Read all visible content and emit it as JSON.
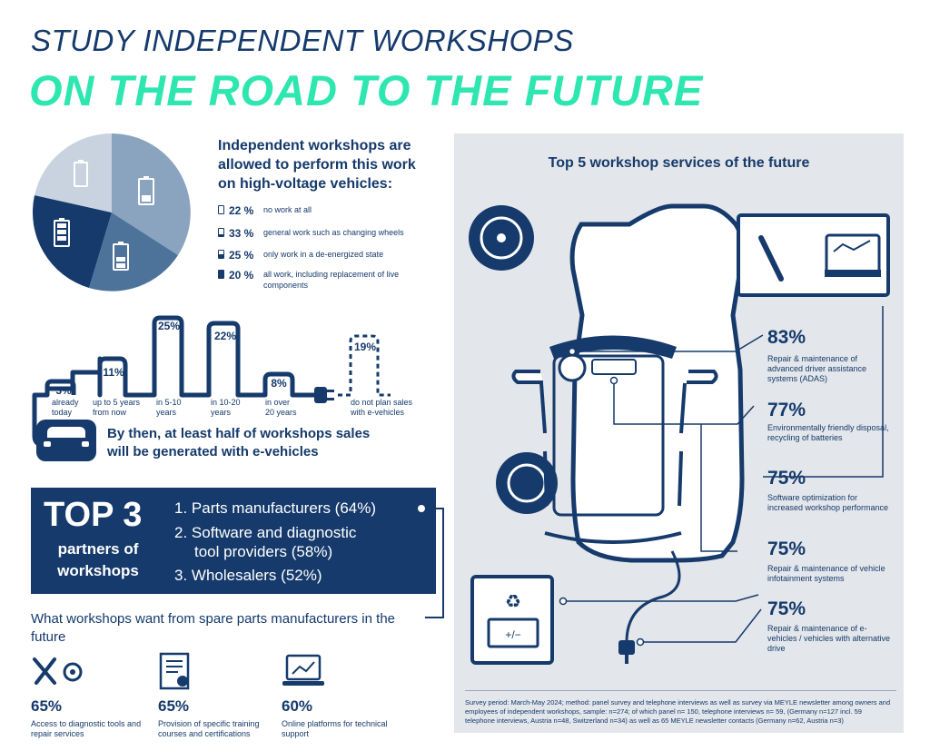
{
  "header": {
    "title_line1": "STUDY INDEPENDENT WORKSHOPS",
    "title_line2": "ON THE ROAD TO THE FUTURE"
  },
  "high_voltage": {
    "heading": "Independent workshops are allowed to perform this work on high-voltage vehicles:",
    "items": [
      {
        "pct": "22 %",
        "label": "no work at all",
        "value": 22
      },
      {
        "pct": "33 %",
        "label": "general work such as changing wheels",
        "value": 33
      },
      {
        "pct": "25 %",
        "label": "only work in a de-energized state",
        "value": 25
      },
      {
        "pct": "20 %",
        "label": "all work, including replacement of live components",
        "value": 20
      }
    ]
  },
  "timeline": {
    "items": [
      {
        "pct": "3%",
        "label_line1": "already",
        "label_line2": "today",
        "value": 3
      },
      {
        "pct": "11%",
        "label_line1": "up to 5 years",
        "label_line2": "from now",
        "value": 11
      },
      {
        "pct": "25%",
        "label_line1": "in 5-10",
        "label_line2": "years",
        "value": 25
      },
      {
        "pct": "22%",
        "label_line1": "in 10-20",
        "label_line2": "years",
        "value": 22
      },
      {
        "pct": "8%",
        "label_line1": "in over",
        "label_line2": "20 years",
        "value": 8
      },
      {
        "pct": "19%",
        "label_line1": "do not plan sales",
        "label_line2": "with e-vehicles",
        "value": 19
      }
    ],
    "summary_line1": "By then, at least half of workshops sales",
    "summary_line2": "will be generated with e-vehicles"
  },
  "top3": {
    "big": "TOP 3",
    "sub": "partners of workshops",
    "items": [
      {
        "text": "1. Parts manufacturers (64%)"
      },
      {
        "text": "2. Software and diagnostic"
      },
      {
        "text": "tool providers (58%)"
      },
      {
        "text": "3. Wholesalers (52%)"
      }
    ]
  },
  "wants": {
    "heading": "What workshops want from spare parts manufacturers in the future",
    "items": [
      {
        "pct": "65%",
        "label": "Access to diagnostic tools and repair services",
        "icon": "tools-icon"
      },
      {
        "pct": "65%",
        "label": "Provision of specific training courses and certifications",
        "icon": "certificate-icon"
      },
      {
        "pct": "60%",
        "label": "Online platforms for technical support",
        "icon": "laptop-icon"
      }
    ]
  },
  "services": {
    "title": "Top 5 workshop services of the future",
    "items": [
      {
        "pct": "83%",
        "label": "Repair & maintenance of advanced driver assistance systems (ADAS)"
      },
      {
        "pct": "77%",
        "label": "Environmentally friendly disposal, recycling of batteries"
      },
      {
        "pct": "75%",
        "label": "Software optimization for increased workshop performance"
      },
      {
        "pct": "75%",
        "label": "Repair & maintenance of vehicle infotainment systems"
      },
      {
        "pct": "75%",
        "label": "Repair & maintenance of e-vehicles / vehicles with alternative drive"
      }
    ],
    "battery_symbol": "+/−"
  },
  "survey": {
    "text": "Survey period: March-May 2024; method: panel survey and telephone interviews as well as survey via MEYLE newsletter among owners and employees of independent workshops, sample: n=274; of which panel n= 150, telephone interviews n= 59, (Germany n=127 incl. 59 telephone interviews, Austria n=48, Switzerland n=34) as well as 65 MEYLE newsletter contacts (Germany n=62, Austria n=3)"
  },
  "colors": {
    "navy": "#153a6b",
    "mint": "#2ee6b0",
    "panel": "#e3e6ea",
    "pie": [
      "#7f9ab8",
      "#4e739b",
      "#153a6b",
      "#c8d3df"
    ]
  }
}
